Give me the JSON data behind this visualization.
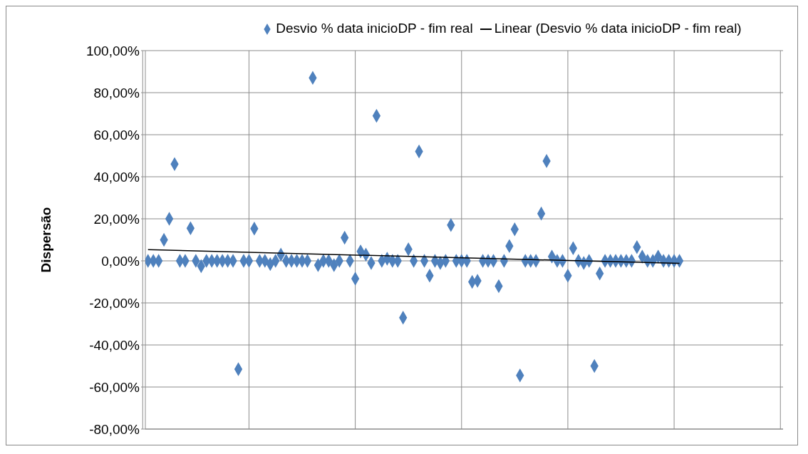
{
  "chart_data": {
    "type": "scatter",
    "ylabel": "Dispersão",
    "categories": [
      null,
      null,
      null,
      null,
      null,
      null,
      null,
      null,
      null,
      null,
      null,
      null,
      null,
      null,
      null,
      null,
      null,
      null,
      null,
      null,
      null,
      null,
      null,
      null,
      null,
      null,
      null,
      null,
      null,
      null,
      null,
      null,
      null,
      null,
      null,
      null,
      null,
      null,
      null,
      null,
      null,
      null,
      null,
      null,
      null,
      null,
      null,
      null,
      null,
      null,
      null,
      null,
      null,
      null,
      null,
      null,
      null,
      null,
      null,
      null,
      null,
      null,
      null,
      null,
      null,
      null,
      null,
      null,
      null,
      null,
      null,
      null,
      null,
      null,
      null,
      null,
      null,
      null,
      null,
      null,
      null,
      null,
      null,
      null,
      null,
      null,
      null,
      null,
      null,
      null,
      null,
      null,
      null,
      null,
      null,
      null,
      null,
      null,
      null,
      null,
      null,
      null,
      null,
      null,
      null,
      null,
      null,
      null,
      null,
      null,
      null,
      null,
      null,
      null,
      null,
      null,
      null,
      null,
      null,
      null
    ],
    "series": [
      {
        "name": "Desvio % data inicioDP - fim real",
        "color": "#4f81bd",
        "marker": "diamond",
        "values": [
          0,
          0,
          0,
          10,
          20,
          46,
          0,
          0,
          15.5,
          0,
          -2.5,
          0,
          0,
          0,
          0,
          0,
          0,
          -51.5,
          0,
          0,
          15.3,
          0,
          0,
          -1.5,
          0,
          3,
          0,
          0,
          0,
          0,
          0,
          87,
          -2,
          0,
          0,
          -2,
          0,
          11,
          0,
          -8.5,
          4.5,
          3,
          -1,
          69,
          0,
          1,
          0,
          0,
          -27,
          5.5,
          0,
          52,
          0,
          -7,
          0,
          -1,
          0,
          17,
          0,
          0,
          0,
          -10,
          -9.5,
          0,
          0,
          0,
          -12,
          0,
          7,
          15,
          -54.5,
          0,
          0,
          0,
          22.5,
          47.5,
          2,
          0,
          0,
          -7,
          6,
          0,
          -1,
          0,
          -50,
          -6,
          0,
          0,
          0,
          0,
          0,
          0,
          6.5,
          2,
          0,
          0,
          2,
          0,
          0,
          0,
          0,
          null,
          null,
          null,
          null,
          null,
          null,
          null,
          null,
          null,
          null,
          null,
          null,
          null,
          null,
          null,
          null,
          null,
          null,
          null
        ]
      },
      {
        "name": "Linear (Desvio % data inicioDP - fim real)",
        "type": "line",
        "color": "#000000",
        "marker": "none",
        "values": [
          5.3,
          null,
          null,
          null,
          null,
          null,
          null,
          null,
          null,
          null,
          null,
          null,
          null,
          null,
          null,
          null,
          null,
          null,
          null,
          null,
          null,
          null,
          null,
          null,
          null,
          null,
          null,
          null,
          null,
          null,
          null,
          null,
          null,
          null,
          null,
          null,
          null,
          null,
          null,
          null,
          null,
          null,
          null,
          null,
          null,
          null,
          null,
          null,
          null,
          null,
          null,
          null,
          null,
          null,
          null,
          null,
          null,
          null,
          null,
          null,
          null,
          null,
          null,
          null,
          null,
          null,
          null,
          null,
          null,
          null,
          null,
          null,
          null,
          null,
          null,
          null,
          null,
          null,
          null,
          null,
          null,
          null,
          null,
          null,
          null,
          null,
          null,
          null,
          null,
          null,
          null,
          null,
          null,
          null,
          null,
          null,
          null,
          null,
          null,
          null,
          -1.2,
          null,
          null,
          null,
          null,
          null,
          null,
          null,
          null,
          null,
          null,
          null,
          null,
          null,
          null,
          null,
          null,
          null,
          null,
          null
        ]
      }
    ],
    "ylim": [
      -80,
      100
    ],
    "yticks": [
      {
        "value": -80,
        "label": "-80,00%"
      },
      {
        "value": -60,
        "label": "-60,00%"
      },
      {
        "value": -40,
        "label": "-40,00%"
      },
      {
        "value": -20,
        "label": "-20,00%"
      },
      {
        "value": 0,
        "label": "0,00%"
      },
      {
        "value": 20,
        "label": "20,00%"
      },
      {
        "value": 40,
        "label": "40,00%"
      },
      {
        "value": 60,
        "label": "60,00%"
      },
      {
        "value": 80,
        "label": "80,00%"
      },
      {
        "value": 100,
        "label": "100,00%"
      }
    ],
    "grid": true,
    "legend": "top"
  }
}
